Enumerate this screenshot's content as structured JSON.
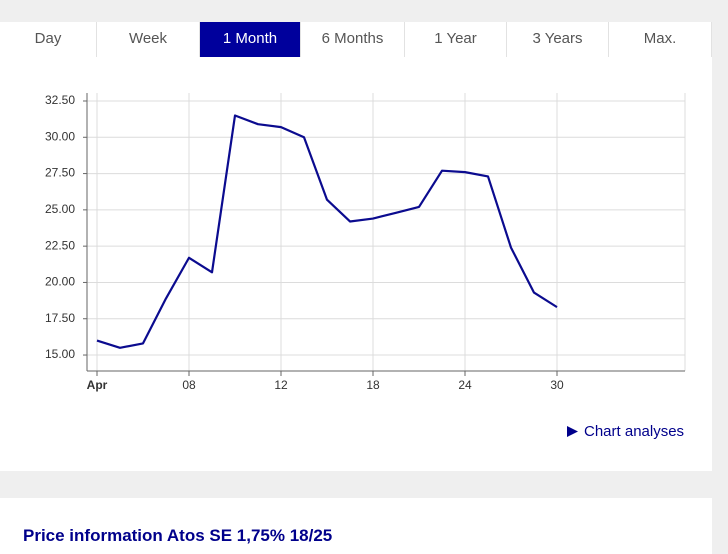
{
  "tabs": [
    "Day",
    "Week",
    "1 Month",
    "6 Months",
    "1 Year",
    "3 Years",
    "Max."
  ],
  "active_tab": 2,
  "chart_data": {
    "type": "line",
    "x": [
      "Apr",
      null,
      null,
      null,
      "08",
      null,
      null,
      null,
      "12",
      null,
      null,
      null,
      "18",
      null,
      null,
      null,
      "24",
      null,
      null,
      null,
      "30"
    ],
    "series": [
      {
        "color": "#0b0b8f",
        "values": [
          16.0,
          15.5,
          15.8,
          18.9,
          21.7,
          20.7,
          31.5,
          30.9,
          30.7,
          30.0,
          25.7,
          24.2,
          24.4,
          24.8,
          25.2,
          27.7,
          27.6,
          27.3,
          22.4,
          19.3,
          18.3
        ]
      }
    ],
    "ylim": [
      13.9,
      33.05
    ],
    "yticks": [
      {
        "value": 15,
        "label": "15.00"
      },
      {
        "value": 17.5,
        "label": "17.50"
      },
      {
        "value": 20,
        "label": "20.00"
      },
      {
        "value": 22.5,
        "label": "22.50"
      },
      {
        "value": 25,
        "label": "25.00"
      },
      {
        "value": 27.5,
        "label": "27.50"
      },
      {
        "value": 30,
        "label": "30.00"
      },
      {
        "value": 32.5,
        "label": "32.50"
      }
    ],
    "grid": true
  },
  "link": "Chart analyses",
  "heading": "Price information Atos SE 1,75% 18/25"
}
